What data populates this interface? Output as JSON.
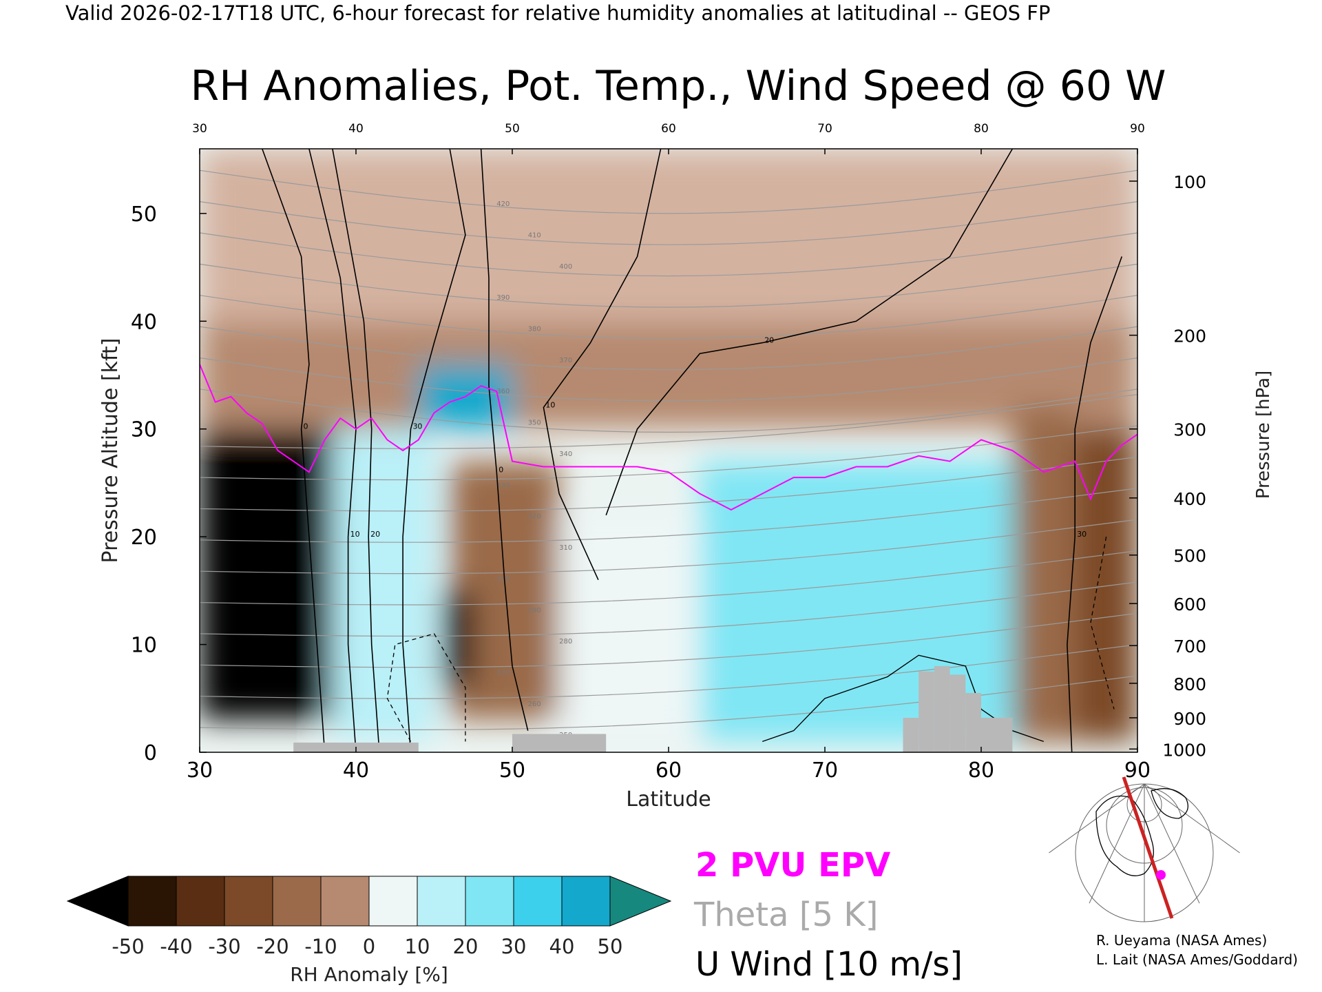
{
  "header": {
    "line": "Valid 2026-02-17T18 UTC, 6-hour forecast for relative humidity anomalies at latitudinal -- GEOS FP"
  },
  "chart_data": {
    "type": "heatmap",
    "title": "RH Anomalies, Pot. Temp., Wind Speed @ 60 W",
    "xlabel": "Latitude",
    "ylabel_left": "Pressure Altitude [kft]",
    "ylabel_right": "Pressure [hPa]",
    "x_range": [
      30,
      90
    ],
    "y_range_kft": [
      0,
      56
    ],
    "x_ticks": [
      "30",
      "40",
      "50",
      "60",
      "70",
      "80",
      "90"
    ],
    "x_ticks_top": [
      "30",
      "40",
      "50",
      "60",
      "70",
      "80",
      "90"
    ],
    "y_ticks_left": [
      {
        "label": "0",
        "kft": 0
      },
      {
        "label": "10",
        "kft": 10
      },
      {
        "label": "20",
        "kft": 20
      },
      {
        "label": "30",
        "kft": 30
      },
      {
        "label": "40",
        "kft": 40
      },
      {
        "label": "50",
        "kft": 50
      }
    ],
    "y_ticks_right": [
      {
        "label": "100",
        "kft": 53.0
      },
      {
        "label": "200",
        "kft": 38.7
      },
      {
        "label": "300",
        "kft": 30.0
      },
      {
        "label": "400",
        "kft": 23.6
      },
      {
        "label": "500",
        "kft": 18.3
      },
      {
        "label": "600",
        "kft": 13.8
      },
      {
        "label": "700",
        "kft": 9.9
      },
      {
        "label": "800",
        "kft": 6.4
      },
      {
        "label": "900",
        "kft": 3.2
      },
      {
        "label": "1000",
        "kft": 0.3
      }
    ],
    "colorbar": {
      "label": "RH Anomaly [%]",
      "tick_labels": [
        "-50",
        "-40",
        "-30",
        "-20",
        "-10",
        "0",
        "10",
        "20",
        "30",
        "40",
        "50"
      ],
      "colors": [
        "#2a1404",
        "#5a2e12",
        "#7c4a28",
        "#9a6a4a",
        "#b68a70",
        "#d4b2a0",
        "#eef6f6",
        "#baf0f8",
        "#80e6f4",
        "#3cd0ec",
        "#14a8cc"
      ],
      "under_color": "#000000",
      "over_color": "#16887e"
    },
    "legend": [
      {
        "label": "2 PVU EPV",
        "color": "#ff00ff"
      },
      {
        "label": "Theta [5 K]",
        "color": "#aaaaaa"
      },
      {
        "label": "U Wind [10 m/s]",
        "color": "#000000"
      }
    ],
    "theta_contour_labels": [
      "420",
      "410",
      "400",
      "390",
      "380",
      "370",
      "360",
      "350",
      "340",
      "330",
      "320",
      "310",
      "300",
      "290",
      "280",
      "270",
      "260",
      "250"
    ],
    "wind_contour_labels": [
      "0",
      "10",
      "20",
      "30"
    ],
    "pvu2_line": {
      "lat": [
        30,
        31,
        32,
        33,
        34,
        35,
        36,
        37,
        38,
        39,
        40,
        41,
        42,
        43,
        44,
        45,
        46,
        47,
        48,
        49,
        50,
        52,
        54,
        56,
        58,
        60,
        62,
        64,
        66,
        68,
        70,
        72,
        74,
        76,
        78,
        80,
        82,
        84,
        86,
        87,
        88,
        89,
        90
      ],
      "kft": [
        36,
        32.5,
        33,
        31.5,
        30.5,
        28,
        27,
        26,
        29,
        31,
        30,
        31,
        29,
        28,
        29,
        31.5,
        32.5,
        33,
        34,
        33.5,
        27,
        26.5,
        26.5,
        26.5,
        26.5,
        26,
        24,
        22.5,
        24,
        25.5,
        25.5,
        26.5,
        26.5,
        27.5,
        27,
        29,
        28,
        26,
        27,
        23.5,
        27,
        28.5,
        29.5
      ]
    },
    "topography": [
      {
        "lat": [
          36,
          44
        ],
        "kft": 0.9
      },
      {
        "lat": [
          50,
          56
        ],
        "kft": 1.7
      },
      {
        "lat": [
          75,
          76
        ],
        "kft": 3.2
      },
      {
        "lat": [
          76,
          77
        ],
        "kft": 7.5
      },
      {
        "lat": [
          77,
          78
        ],
        "kft": 8.0
      },
      {
        "lat": [
          78,
          79
        ],
        "kft": 7.2
      },
      {
        "lat": [
          79,
          80
        ],
        "kft": 5.5
      },
      {
        "lat": [
          80,
          82
        ],
        "kft": 3.2
      }
    ],
    "anomaly_regions": [
      {
        "lat": [
          30,
          38.5
        ],
        "kft": [
          3,
          30
        ],
        "value": -55
      },
      {
        "lat": [
          38.5,
          45
        ],
        "kft": [
          1,
          30
        ],
        "value": 15
      },
      {
        "lat": [
          44,
          50
        ],
        "kft": [
          30,
          36
        ],
        "value": 48
      },
      {
        "lat": [
          45.5,
          47.5
        ],
        "kft": [
          6,
          15
        ],
        "value": -55
      },
      {
        "lat": [
          46,
          53
        ],
        "kft": [
          3,
          27
        ],
        "value": -25
      },
      {
        "lat": [
          53,
          62
        ],
        "kft": [
          1,
          22
        ],
        "value": 10
      },
      {
        "lat": [
          62,
          82
        ],
        "kft": [
          1,
          27
        ],
        "value": 30
      },
      {
        "lat": [
          82,
          86
        ],
        "kft": [
          1,
          32
        ],
        "value": -20
      },
      {
        "lat": [
          86,
          90
        ],
        "kft": [
          1,
          30
        ],
        "value": -30
      },
      {
        "lat": [
          30,
          90
        ],
        "kft": [
          30,
          40
        ],
        "value": -15
      },
      {
        "lat": [
          30,
          90
        ],
        "kft": [
          40,
          56
        ],
        "value": 0
      }
    ]
  },
  "credits": {
    "line1": "R. Ueyama (NASA Ames)",
    "line2": "L. Lait (NASA Ames/Goddard)"
  },
  "inset_map": {
    "section_line_color": "#cc2222",
    "marker_color": "#ff00ff"
  }
}
